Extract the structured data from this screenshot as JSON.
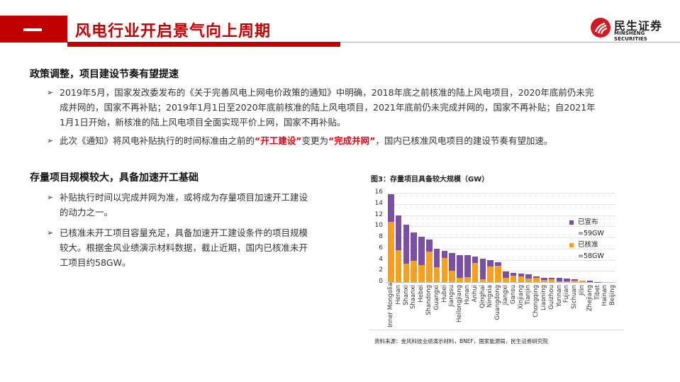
{
  "header": {
    "section_number": "一",
    "title": "风电行业开启景气向上周期",
    "logo": {
      "cn": "民生证券",
      "en": "MINSHENG SECURITIES"
    }
  },
  "section1": {
    "heading": "政策调整，项目建设节奏有望提速",
    "bullets": [
      {
        "lines": [
          "2019年5月，国家发改委发布的《关于完善风电上网电价政策的通知》中明确，2018年底之前核准的陆上风电项目，2020年底前仍未完",
          "成并网的，国家不再补贴；2019年1月1日至2020年底前核准的陆上风电项目，2021年底前仍未完成并网的，国家不再补贴；自2021年",
          "1月1日开始，新核准的陆上风电项目全面实现平价上网，国家不再补贴。"
        ]
      },
      {
        "prefix": "此次《通知》将风电补贴执行的时间标准由之前的",
        "highlight1": "“开工建设”",
        "middle": "变更为",
        "highlight2": "“完成并网”",
        "suffix": "，国内已核准风电项目的建设节奏有望加速。"
      }
    ]
  },
  "section2": {
    "heading": "存量项目规模较大，具备加速开工基础",
    "bullets": [
      {
        "lines": [
          "补贴执行时间以完成并网为准，或将成为存量项目加速开工建设",
          "的动力之一。"
        ]
      },
      {
        "lines": [
          "已核准未开工项目容量充足，具备加速开工建设条件的项目规模",
          "较大。根据金风业绩演示材料数据，截止近期，国内已核准未开",
          "工项目约58GW。"
        ]
      }
    ]
  },
  "bullet_arrow": "➢",
  "chart": {
    "title": "图3：存量项目具备较大规模（GW）",
    "source": "资料来源：金风科技业绩演示材料，BNEF，国家能源局，民生证券研究院",
    "legend": [
      {
        "label": "已宣布",
        "sub": "=59GW",
        "color": "#7b4fa4"
      },
      {
        "label": "已核准",
        "sub": "=58GW",
        "color": "#f7a01c"
      }
    ]
  },
  "chart_data": {
    "type": "bar",
    "stacked": true,
    "title": "图3：存量项目具备较大规模（GW）",
    "xlabel": "",
    "ylabel": "GW",
    "ylim": [
      0,
      16
    ],
    "yticks": [
      0,
      2,
      4,
      6,
      8,
      10,
      12,
      14,
      16
    ],
    "grid": true,
    "legend_position": "right",
    "categories": [
      "Inner Mongolia",
      "Henan",
      "Shanxi",
      "Shaanxi",
      "Hebei",
      "Shandong",
      "Guangxi",
      "Hubei",
      "Jiangsu",
      "Heilongjiang",
      "Hunan",
      "Anhui",
      "Qinghai",
      "Ningxia",
      "Guangdong",
      "Jiangxi",
      "Gansu",
      "Xinjiang",
      "Tianjin",
      "Chongqing",
      "Liaoning",
      "Guizhou",
      "Yunnan",
      "Fujian",
      "Sichuan",
      "Jilin",
      "Zhejiang",
      "Tibet",
      "Hainan",
      "Beijing"
    ],
    "series": [
      {
        "name": "已核准 =58GW",
        "color": "#f7a01c",
        "values": [
          10.8,
          5.7,
          3.3,
          3.8,
          3.0,
          5.5,
          2.7,
          4.3,
          2.0,
          0.8,
          0.9,
          3.4,
          0.5,
          2.8,
          2.9,
          0.8,
          1.1,
          1.0,
          0.6,
          0.7,
          0.4,
          0.5,
          0.1,
          0.1,
          0.3,
          0.2,
          0.0,
          0.0,
          0.0,
          0.0
        ]
      },
      {
        "name": "已宣布 =59GW",
        "color": "#7b4fa4",
        "values": [
          4.9,
          6.2,
          7.0,
          5.1,
          5.1,
          2.1,
          3.3,
          1.3,
          3.2,
          4.0,
          3.9,
          1.2,
          3.7,
          1.1,
          0.7,
          1.1,
          0.5,
          0.5,
          0.8,
          0.3,
          0.4,
          0.3,
          0.6,
          0.5,
          0.2,
          0.1,
          0.2,
          0.05,
          0.0,
          0.0
        ]
      }
    ]
  }
}
